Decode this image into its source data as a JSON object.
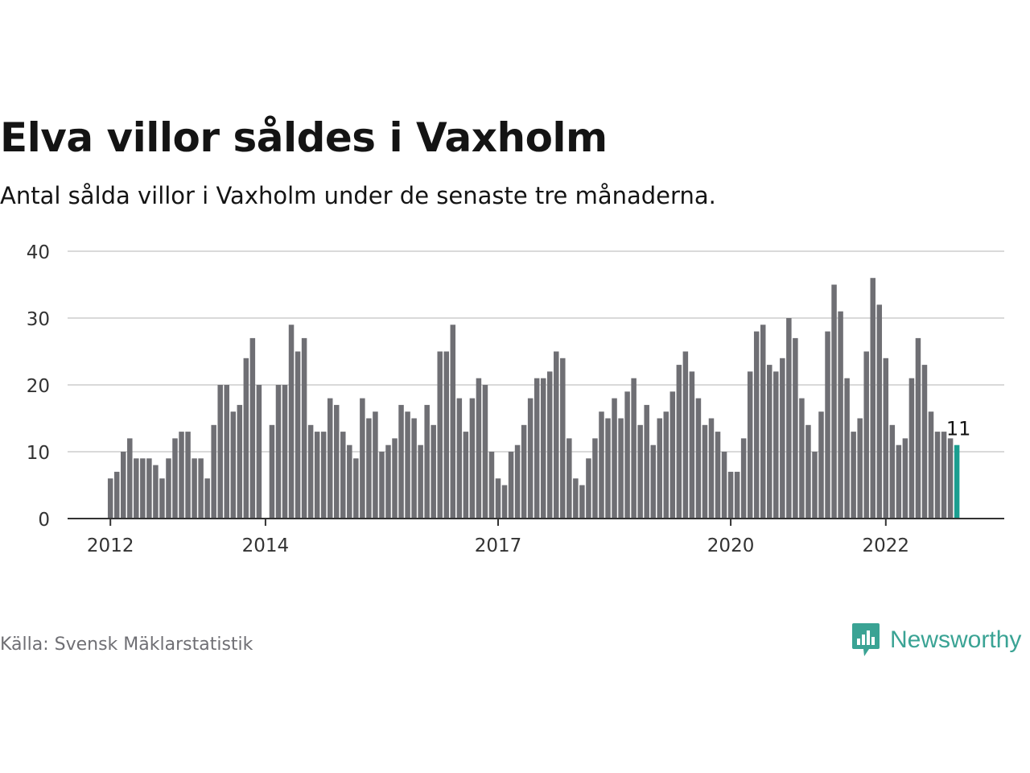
{
  "header": {
    "title": "Elva villor såldes i Vaxholm",
    "subtitle": "Antal sålda villor i Vaxholm under de senaste tre månaderna."
  },
  "footer": {
    "source": "Källa: Svensk Mäklarstatistik",
    "logo_text": "Newsworthy"
  },
  "colors": {
    "bar": "#6f6f74",
    "highlight": "#1a9e90",
    "grid": "#d9d9d9",
    "axis": "#333333",
    "logo": "#3aa394"
  },
  "chart_data": {
    "type": "bar",
    "title": "Elva villor såldes i Vaxholm",
    "ylim": [
      0,
      40
    ],
    "yticks": [
      0,
      10,
      20,
      30,
      40
    ],
    "grid": true,
    "x_start": "2012-01",
    "x_tick_labels": [
      {
        "label": "2012",
        "month": "2012-01"
      },
      {
        "label": "2014",
        "month": "2014-01"
      },
      {
        "label": "2017",
        "month": "2017-01"
      },
      {
        "label": "2020",
        "month": "2020-01"
      },
      {
        "label": "2022",
        "month": "2022-01"
      }
    ],
    "values": [
      6,
      7,
      10,
      12,
      9,
      9,
      9,
      8,
      6,
      9,
      12,
      13,
      13,
      9,
      9,
      6,
      14,
      20,
      20,
      16,
      17,
      24,
      27,
      20,
      null,
      14,
      20,
      20,
      29,
      25,
      27,
      14,
      13,
      13,
      18,
      17,
      13,
      11,
      9,
      18,
      15,
      16,
      10,
      11,
      12,
      17,
      16,
      15,
      11,
      17,
      14,
      25,
      25,
      29,
      18,
      13,
      18,
      21,
      20,
      10,
      6,
      5,
      10,
      11,
      14,
      18,
      21,
      21,
      22,
      25,
      24,
      12,
      6,
      5,
      9,
      12,
      16,
      15,
      18,
      15,
      19,
      21,
      14,
      17,
      11,
      15,
      16,
      19,
      23,
      25,
      22,
      18,
      14,
      15,
      13,
      10,
      7,
      7,
      12,
      22,
      28,
      29,
      23,
      22,
      24,
      30,
      27,
      18,
      14,
      10,
      16,
      28,
      35,
      31,
      21,
      13,
      15,
      25,
      36,
      32,
      24,
      14,
      11,
      12,
      21,
      27,
      23,
      16,
      13,
      13,
      12,
      11
    ],
    "highlight_last": true,
    "annotation": "11"
  }
}
